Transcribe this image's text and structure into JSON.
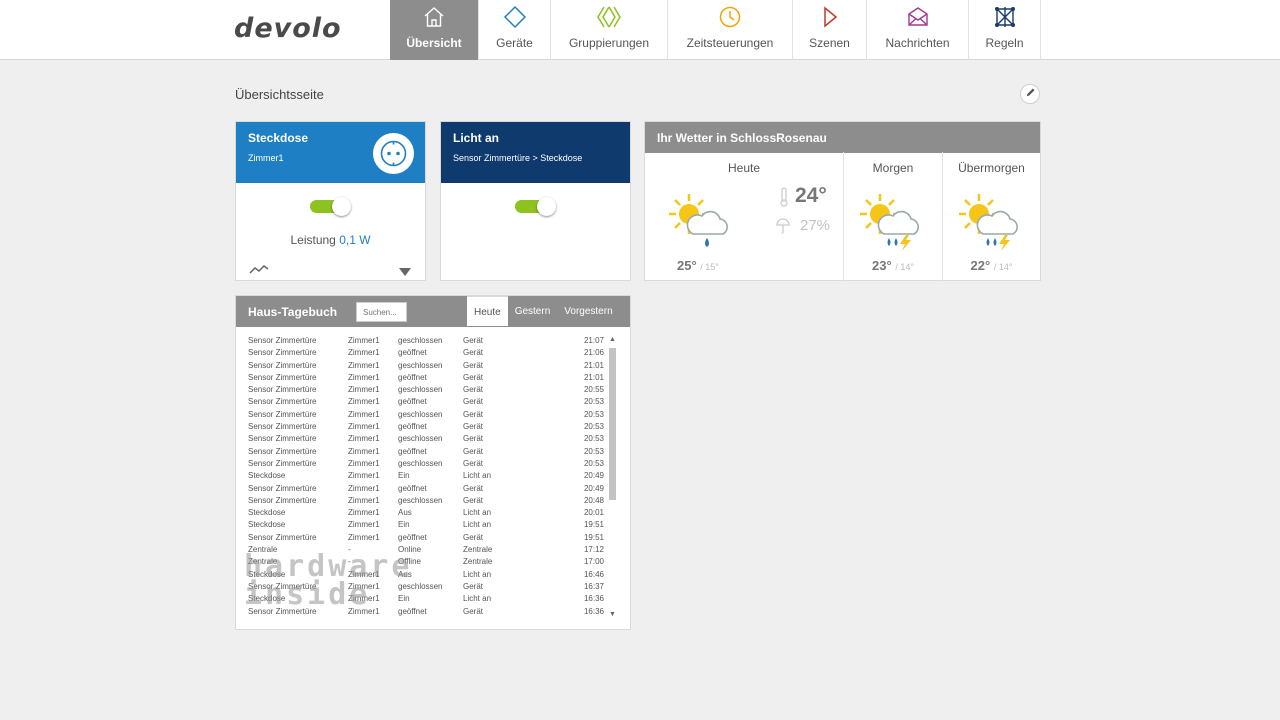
{
  "brand": {
    "logo": "devolo"
  },
  "nav": [
    {
      "label": "Übersicht",
      "icon": "home-icon",
      "active": true
    },
    {
      "label": "Geräte",
      "icon": "diamond-icon"
    },
    {
      "label": "Gruppierungen",
      "icon": "groups-icon"
    },
    {
      "label": "Zeitsteuerungen",
      "icon": "clock-icon"
    },
    {
      "label": "Szenen",
      "icon": "play-icon"
    },
    {
      "label": "Nachrichten",
      "icon": "envelope-icon"
    },
    {
      "label": "Regeln",
      "icon": "rules-icon"
    }
  ],
  "page": {
    "title": "Übersichtsseite"
  },
  "steckdose": {
    "title": "Steckdose",
    "room": "Zimmer1",
    "power_label": "Leistung",
    "power_value": "0,1 W",
    "switch_on": true,
    "head_color": "#1f7fc4"
  },
  "licht": {
    "title": "Licht an",
    "subtitle": "Sensor Zimmertüre > Steckdose",
    "switch_on": true,
    "head_color": "#0e3a6e"
  },
  "weather": {
    "title": "Ihr Wetter in SchlossRosenau",
    "today": {
      "label": "Heute",
      "temp_now": "24°",
      "rain": "27%",
      "high": "25°",
      "low": "/ 15°",
      "icon": "sun-cloud-rain-icon"
    },
    "tomorrow": {
      "label": "Morgen",
      "high": "23°",
      "low": "/ 14°",
      "icon": "sun-cloud-thunder-icon"
    },
    "day_after": {
      "label": "Übermorgen",
      "high": "22°",
      "low": "/ 14°",
      "icon": "sun-cloud-thunder-icon"
    }
  },
  "journal": {
    "title": "Haus-Tagebuch",
    "search_placeholder": "Suchen...",
    "tabs": [
      "Heute",
      "Gestern",
      "Vorgestern"
    ],
    "rows": [
      [
        "Sensor Zimmertüre",
        "Zimmer1",
        "geschlossen",
        "Gerät",
        "21:07"
      ],
      [
        "Sensor Zimmertüre",
        "Zimmer1",
        "geöffnet",
        "Gerät",
        "21:06"
      ],
      [
        "Sensor Zimmertüre",
        "Zimmer1",
        "geschlossen",
        "Gerät",
        "21:01"
      ],
      [
        "Sensor Zimmertüre",
        "Zimmer1",
        "geöffnet",
        "Gerät",
        "21:01"
      ],
      [
        "Sensor Zimmertüre",
        "Zimmer1",
        "geschlossen",
        "Gerät",
        "20:55"
      ],
      [
        "Sensor Zimmertüre",
        "Zimmer1",
        "geöffnet",
        "Gerät",
        "20:53"
      ],
      [
        "Sensor Zimmertüre",
        "Zimmer1",
        "geschlossen",
        "Gerät",
        "20:53"
      ],
      [
        "Sensor Zimmertüre",
        "Zimmer1",
        "geöffnet",
        "Gerät",
        "20:53"
      ],
      [
        "Sensor Zimmertüre",
        "Zimmer1",
        "geschlossen",
        "Gerät",
        "20:53"
      ],
      [
        "Sensor Zimmertüre",
        "Zimmer1",
        "geöffnet",
        "Gerät",
        "20:53"
      ],
      [
        "Sensor Zimmertüre",
        "Zimmer1",
        "geschlossen",
        "Gerät",
        "20:53"
      ],
      [
        "Steckdose",
        "Zimmer1",
        "Ein",
        "Licht an",
        "20:49"
      ],
      [
        "Sensor Zimmertüre",
        "Zimmer1",
        "geöffnet",
        "Gerät",
        "20:49"
      ],
      [
        "Sensor Zimmertüre",
        "Zimmer1",
        "geschlossen",
        "Gerät",
        "20:48"
      ],
      [
        "Steckdose",
        "Zimmer1",
        "Aus",
        "Licht an",
        "20:01"
      ],
      [
        "Steckdose",
        "Zimmer1",
        "Ein",
        "Licht an",
        "19:51"
      ],
      [
        "Sensor Zimmertüre",
        "Zimmer1",
        "geöffnet",
        "Gerät",
        "19:51"
      ],
      [
        "Zentrale",
        "-",
        "Online",
        "Zentrale",
        "17:12"
      ],
      [
        "Zentrale",
        "-",
        "Offline",
        "Zentrale",
        "17:00"
      ],
      [
        "Steckdose",
        "Zimmer1",
        "Aus",
        "Licht an",
        "16:46"
      ],
      [
        "Sensor Zimmertüre",
        "Zimmer1",
        "geschlossen",
        "Gerät",
        "16:37"
      ],
      [
        "Steckdose",
        "Zimmer1",
        "Ein",
        "Licht an",
        "16:36"
      ],
      [
        "Sensor Zimmertüre",
        "Zimmer1",
        "geöffnet",
        "Gerät",
        "16:36"
      ]
    ]
  },
  "watermark": {
    "line1": "hardware",
    "line2": "inside"
  },
  "colors": {
    "accent_green": "#8dc21f",
    "header_grey": "#8d8d8d",
    "steckdose_blue": "#1f7fc4",
    "licht_navy": "#0e3a6e"
  }
}
